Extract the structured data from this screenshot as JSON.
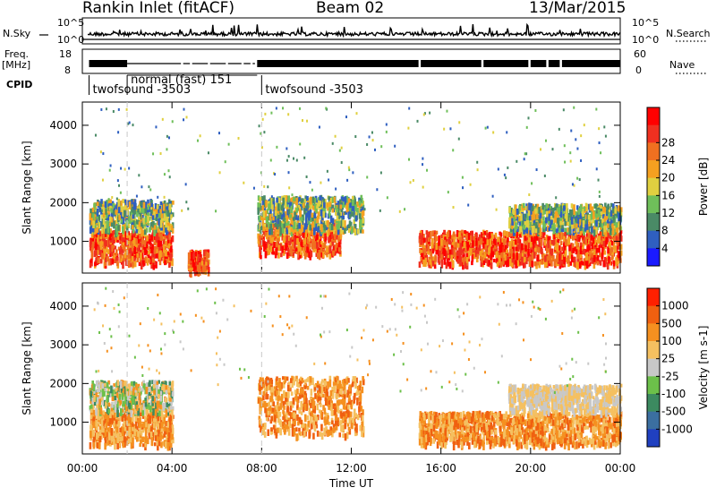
{
  "header": {
    "station": "Rankin Inlet (fitACF)",
    "beam": "Beam 02",
    "date": "13/Mar/2015"
  },
  "side_labels": {
    "nsky": "N.Sky",
    "freq": "Freq.",
    "freq_unit": "[MHz]",
    "cpid": "CPID",
    "nsearch": "N.Search",
    "nave": "Nave"
  },
  "cpid_entries": [
    {
      "label": "twofsound -3503",
      "start_hour": 0.3
    },
    {
      "label": "normal (fast) 151",
      "start_hour": 2.0
    },
    {
      "label": "twofsound -3503",
      "start_hour": 8.0
    }
  ],
  "noise_axis": {
    "left_ticks": [
      "10^5",
      "10^0"
    ],
    "right_ticks": [
      "10^5",
      "10^0"
    ]
  },
  "freq_axis": {
    "left_ticks": [
      "18",
      "8"
    ],
    "right_ticks": [
      "60",
      "0"
    ]
  },
  "chart_data": [
    {
      "type": "heatmap",
      "panel": "power",
      "xlabel": "Time UT",
      "ylabel": "Slant Range [km]",
      "xlim_hours": [
        0,
        24
      ],
      "ylim": [
        180,
        4600
      ],
      "xticks": [
        "00:00",
        "04:00",
        "08:00",
        "12:00",
        "16:00",
        "20:00",
        "00:00"
      ],
      "xtick_hours": [
        0,
        4,
        8,
        12,
        16,
        20,
        24
      ],
      "yticks": [
        1000,
        2000,
        3000,
        4000
      ],
      "colorbar": {
        "label": "Power [dB]",
        "ticks": [
          4,
          8,
          12,
          16,
          20,
          24,
          28
        ],
        "colors": [
          "#1a1aff",
          "#2f5fc0",
          "#4a8a66",
          "#6fbf5a",
          "#e0d040",
          "#f5a020",
          "#f07020",
          "#f03020",
          "#ff0000"
        ]
      },
      "echo_regions": [
        {
          "t0": 0.3,
          "t1": 4.0,
          "r0": 450,
          "r1": 1300,
          "level": "high"
        },
        {
          "t0": 0.3,
          "t1": 4.0,
          "r0": 1300,
          "r1": 2100,
          "level": "mid"
        },
        {
          "t0": 4.7,
          "t1": 5.6,
          "r0": 250,
          "r1": 800,
          "level": "high"
        },
        {
          "t0": 7.8,
          "t1": 11.5,
          "r0": 700,
          "r1": 1500,
          "level": "high"
        },
        {
          "t0": 7.8,
          "t1": 12.5,
          "r0": 1300,
          "r1": 2200,
          "level": "mid"
        },
        {
          "t0": 15.0,
          "t1": 24.0,
          "r0": 450,
          "r1": 1300,
          "level": "high"
        },
        {
          "t0": 19.0,
          "t1": 24.0,
          "r0": 1300,
          "r1": 2000,
          "level": "mid"
        }
      ]
    },
    {
      "type": "heatmap",
      "panel": "velocity",
      "xlabel": "Time UT",
      "ylabel": "Slant Range [km]",
      "xlim_hours": [
        0,
        24
      ],
      "ylim": [
        180,
        4600
      ],
      "xticks": [
        "00:00",
        "04:00",
        "08:00",
        "12:00",
        "16:00",
        "20:00",
        "00:00"
      ],
      "xtick_hours": [
        0,
        4,
        8,
        12,
        16,
        20,
        24
      ],
      "yticks": [
        1000,
        2000,
        3000,
        4000
      ],
      "colorbar": {
        "label": "Velocity [m s-1]",
        "ticks": [
          1000,
          500,
          100,
          25,
          -25,
          -100,
          -500,
          -1000
        ],
        "colors": [
          "#2040c0",
          "#3b6fa0",
          "#3c8a60",
          "#6cc04a",
          "#c8c8c8",
          "#f5c060",
          "#f59020",
          "#f06010",
          "#ff2000"
        ]
      },
      "echo_regions": [
        {
          "t0": 0.3,
          "t1": 4.0,
          "r0": 450,
          "r1": 1300,
          "level": "negative"
        },
        {
          "t0": 0.3,
          "t1": 4.0,
          "r0": 1300,
          "r1": 2100,
          "level": "mixed"
        },
        {
          "t0": 7.8,
          "t1": 12.5,
          "r0": 700,
          "r1": 2200,
          "level": "negative"
        },
        {
          "t0": 15.0,
          "t1": 24.0,
          "r0": 450,
          "r1": 1300,
          "level": "negative"
        },
        {
          "t0": 19.0,
          "t1": 24.0,
          "r0": 1300,
          "r1": 2000,
          "level": "near-zero"
        }
      ]
    }
  ]
}
